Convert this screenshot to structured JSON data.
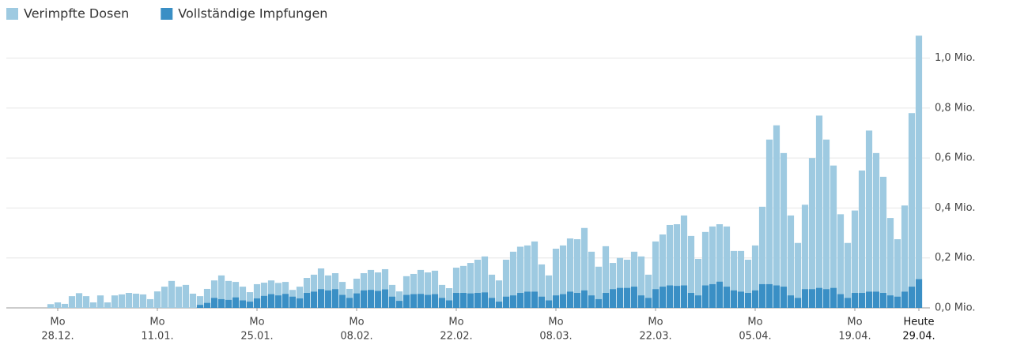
{
  "chart_data": {
    "type": "bar",
    "legend": "top-left",
    "grid": true,
    "ylim": [
      0,
      1.1
    ],
    "yticks": [
      {
        "value": 0,
        "label": "0,0 Mio."
      },
      {
        "value": 0.2,
        "label": "0,2 Mio."
      },
      {
        "value": 0.4,
        "label": "0,4 Mio."
      },
      {
        "value": 0.6,
        "label": "0,6 Mio."
      },
      {
        "value": 0.8,
        "label": "0,8 Mio."
      },
      {
        "value": 1.0,
        "label": "1,0 Mio."
      }
    ],
    "categories": [
      null,
      [
        "Mo",
        "28.12."
      ],
      null,
      null,
      null,
      null,
      null,
      null,
      null,
      null,
      null,
      null,
      null,
      null,
      null,
      [
        "Mo",
        "11.01."
      ],
      null,
      null,
      null,
      null,
      null,
      null,
      null,
      null,
      null,
      null,
      null,
      null,
      null,
      [
        "Mo",
        "25.01."
      ],
      null,
      null,
      null,
      null,
      null,
      null,
      null,
      null,
      null,
      null,
      null,
      null,
      null,
      [
        "Mo",
        "08.02."
      ],
      null,
      null,
      null,
      null,
      null,
      null,
      null,
      null,
      null,
      null,
      null,
      null,
      null,
      [
        "Mo",
        "22.02."
      ],
      null,
      null,
      null,
      null,
      null,
      null,
      null,
      null,
      null,
      null,
      null,
      null,
      null,
      [
        "Mo",
        "08.03."
      ],
      null,
      null,
      null,
      null,
      null,
      null,
      null,
      null,
      null,
      null,
      null,
      null,
      null,
      [
        "Mo",
        "22.03."
      ],
      null,
      null,
      null,
      null,
      null,
      null,
      null,
      null,
      null,
      null,
      null,
      null,
      null,
      [
        "Mo",
        "05.04."
      ],
      null,
      null,
      null,
      null,
      null,
      null,
      null,
      null,
      null,
      null,
      null,
      null,
      null,
      [
        "Mo",
        "19.04."
      ],
      null,
      null,
      null,
      null,
      null,
      null,
      null,
      null,
      [
        "Heute",
        "29.04."
      ]
    ],
    "series": [
      {
        "name": "Verimpfte Dosen",
        "color": "#9ecae1",
        "values": [
          0.015,
          0.022,
          0.016,
          0.047,
          0.059,
          0.047,
          0.022,
          0.05,
          0.022,
          0.05,
          0.054,
          0.06,
          0.057,
          0.054,
          0.035,
          0.066,
          0.085,
          0.108,
          0.085,
          0.092,
          0.057,
          0.047,
          0.076,
          0.11,
          0.13,
          0.108,
          0.104,
          0.085,
          0.063,
          0.095,
          0.101,
          0.11,
          0.1,
          0.104,
          0.072,
          0.085,
          0.12,
          0.133,
          0.158,
          0.13,
          0.139,
          0.104,
          0.076,
          0.117,
          0.139,
          0.152,
          0.142,
          0.155,
          0.092,
          0.066,
          0.127,
          0.136,
          0.152,
          0.142,
          0.149,
          0.092,
          0.079,
          0.161,
          0.168,
          0.18,
          0.193,
          0.206,
          0.133,
          0.11,
          0.193,
          0.225,
          0.245,
          0.25,
          0.266,
          0.174,
          0.13,
          0.237,
          0.25,
          0.278,
          0.275,
          0.32,
          0.225,
          0.165,
          0.247,
          0.18,
          0.2,
          0.193,
          0.225,
          0.206,
          0.133,
          0.266,
          0.294,
          0.332,
          0.335,
          0.37,
          0.288,
          0.196,
          0.304,
          0.326,
          0.335,
          0.326,
          0.228,
          0.228,
          0.193,
          0.25,
          0.405,
          0.674,
          0.731,
          0.62,
          0.37,
          0.26,
          0.413,
          0.6,
          0.77,
          0.674,
          0.57,
          0.375,
          0.26,
          0.39,
          0.55,
          0.71,
          0.62,
          0.525,
          0.36,
          0.275,
          0.41,
          0.78,
          1.09
        ]
      },
      {
        "name": "Vollständige Impfungen",
        "color": "#3a8fc5",
        "values": [
          0,
          0,
          0,
          0,
          0,
          0,
          0,
          0,
          0,
          0,
          0,
          0,
          0,
          0,
          0,
          0,
          0,
          0,
          0,
          0,
          0,
          0.012,
          0.02,
          0.04,
          0.035,
          0.032,
          0.042,
          0.03,
          0.025,
          0.038,
          0.048,
          0.055,
          0.05,
          0.056,
          0.045,
          0.038,
          0.06,
          0.065,
          0.075,
          0.07,
          0.075,
          0.052,
          0.04,
          0.058,
          0.07,
          0.072,
          0.068,
          0.074,
          0.045,
          0.028,
          0.052,
          0.055,
          0.056,
          0.052,
          0.055,
          0.04,
          0.03,
          0.06,
          0.06,
          0.058,
          0.06,
          0.062,
          0.04,
          0.025,
          0.045,
          0.05,
          0.06,
          0.065,
          0.065,
          0.045,
          0.03,
          0.05,
          0.055,
          0.065,
          0.06,
          0.07,
          0.05,
          0.035,
          0.06,
          0.075,
          0.08,
          0.08,
          0.085,
          0.05,
          0.04,
          0.075,
          0.085,
          0.09,
          0.088,
          0.09,
          0.06,
          0.05,
          0.09,
          0.095,
          0.105,
          0.085,
          0.07,
          0.065,
          0.06,
          0.07,
          0.095,
          0.095,
          0.09,
          0.085,
          0.05,
          0.04,
          0.075,
          0.075,
          0.08,
          0.075,
          0.08,
          0.055,
          0.04,
          0.06,
          0.06,
          0.065,
          0.065,
          0.06,
          0.05,
          0.045,
          0.065,
          0.085,
          0.115
        ]
      }
    ]
  }
}
